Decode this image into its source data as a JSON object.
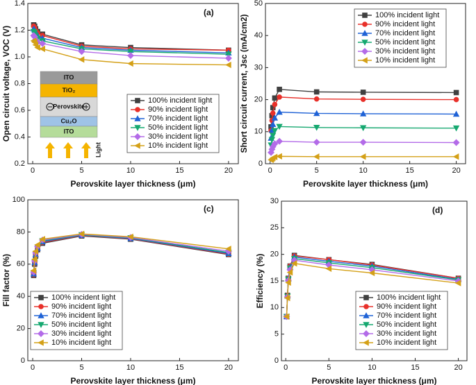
{
  "chart_data": [
    {
      "type": "line",
      "panel_label": "(a)",
      "x_label": "Perovskite layer thickness (μm)",
      "y_label": "Open circuit voltage, VOC (V)",
      "x": [
        0.1,
        0.2,
        0.3,
        0.5,
        1,
        5,
        10,
        20
      ],
      "xlim": [
        -0.5,
        21
      ],
      "xticks": [
        0,
        5,
        10,
        15,
        20
      ],
      "ylim": [
        0.2,
        1.4
      ],
      "yticks": [
        0.2,
        0.4,
        0.6,
        0.8,
        {
          "value": 1.0,
          "label": "1.0"
        },
        1.2,
        1.4
      ],
      "legend": "lower right",
      "inset_labels": [
        "ITO",
        "TiO₂",
        "Perovskite",
        "Cu₂O",
        "ITO",
        "Light"
      ],
      "series": [
        {
          "name": "100% incident light",
          "color": "#404040",
          "marker": "square",
          "values": [
            1.24,
            1.23,
            1.21,
            1.19,
            1.17,
            1.09,
            1.07,
            1.05
          ]
        },
        {
          "name": "90% incident light",
          "color": "#e8302a",
          "marker": "circle",
          "values": [
            1.23,
            1.22,
            1.2,
            1.18,
            1.16,
            1.08,
            1.06,
            1.05
          ]
        },
        {
          "name": "70% incident light",
          "color": "#1f62d6",
          "marker": "up",
          "values": [
            1.21,
            1.2,
            1.18,
            1.16,
            1.14,
            1.07,
            1.05,
            1.03
          ]
        },
        {
          "name": "50% incident light",
          "color": "#16a870",
          "marker": "down",
          "values": [
            1.19,
            1.18,
            1.16,
            1.14,
            1.12,
            1.06,
            1.04,
            1.02
          ]
        },
        {
          "name": "30% incident light",
          "color": "#b36be8",
          "marker": "diamond",
          "values": [
            1.16,
            1.15,
            1.13,
            1.11,
            1.1,
            1.04,
            1.01,
            0.99
          ]
        },
        {
          "name": "10% incident light",
          "color": "#d4a017",
          "marker": "left",
          "values": [
            1.12,
            1.11,
            1.09,
            1.07,
            1.06,
            0.98,
            0.95,
            0.94
          ]
        }
      ]
    },
    {
      "type": "line",
      "panel_label": "(b)",
      "x_label": "Perovskite layer thickness (μm)",
      "y_label": "Short circuit current, Jsc (mA/cm2)",
      "x": [
        0.1,
        0.2,
        0.3,
        0.5,
        1,
        5,
        10,
        20
      ],
      "xlim": [
        -0.5,
        21
      ],
      "xticks": [
        0,
        5,
        10,
        15,
        20
      ],
      "ylim": [
        0,
        50
      ],
      "yticks": [
        0,
        10,
        20,
        30,
        40,
        50
      ],
      "legend": "upper right",
      "series": [
        {
          "name": "100% incident light",
          "color": "#404040",
          "marker": "square",
          "values": [
            11.5,
            15,
            17.5,
            20.5,
            23.2,
            22.4,
            22.3,
            22.2
          ]
        },
        {
          "name": "90% incident light",
          "color": "#e8302a",
          "marker": "circle",
          "values": [
            10.3,
            13.5,
            15.8,
            18.5,
            20.8,
            20.2,
            20.1,
            20
          ]
        },
        {
          "name": "70% incident light",
          "color": "#1f62d6",
          "marker": "up",
          "values": [
            8,
            10.5,
            12.3,
            14.3,
            16.1,
            15.7,
            15.6,
            15.5
          ]
        },
        {
          "name": "50% incident light",
          "color": "#16a870",
          "marker": "down",
          "values": [
            5.8,
            7.5,
            8.8,
            10.3,
            11.6,
            11.3,
            11.2,
            11.1
          ]
        },
        {
          "name": "30% incident light",
          "color": "#b36be8",
          "marker": "diamond",
          "values": [
            3.5,
            4.5,
            5.3,
            6.2,
            7,
            6.7,
            6.7,
            6.6
          ]
        },
        {
          "name": "10% incident light",
          "color": "#d4a017",
          "marker": "left",
          "values": [
            1.2,
            1.5,
            1.8,
            2.1,
            2.3,
            2.2,
            2.2,
            2.2
          ]
        }
      ]
    },
    {
      "type": "line",
      "panel_label": "(c)",
      "x_label": "Perovskite layer thickness (μm)",
      "y_label": "Fill factor (%)",
      "x": [
        0.1,
        0.2,
        0.3,
        0.5,
        1,
        5,
        10,
        20
      ],
      "xlim": [
        -0.5,
        21
      ],
      "xticks": [
        0,
        5,
        10,
        15,
        20
      ],
      "ylim": [
        0,
        100
      ],
      "yticks": [
        0,
        20,
        40,
        60,
        80,
        100
      ],
      "legend": "lower left",
      "series": [
        {
          "name": "100% incident light",
          "color": "#404040",
          "marker": "square",
          "values": [
            53,
            60,
            65,
            69,
            73,
            77.5,
            75.5,
            66
          ]
        },
        {
          "name": "90% incident light",
          "color": "#e8302a",
          "marker": "circle",
          "values": [
            53.5,
            60.5,
            65.5,
            69.5,
            73.5,
            77.8,
            75.8,
            66.3
          ]
        },
        {
          "name": "70% incident light",
          "color": "#1f62d6",
          "marker": "up",
          "values": [
            54,
            61,
            66,
            70,
            74,
            78,
            76,
            66.7
          ]
        },
        {
          "name": "50% incident light",
          "color": "#16a870",
          "marker": "down",
          "values": [
            54.5,
            61.5,
            66.5,
            70.5,
            74.5,
            78.2,
            76.3,
            67.2
          ]
        },
        {
          "name": "30% incident light",
          "color": "#b36be8",
          "marker": "diamond",
          "values": [
            55,
            62,
            67,
            71,
            75,
            78.5,
            76.6,
            68
          ]
        },
        {
          "name": "10% incident light",
          "color": "#d4a017",
          "marker": "left",
          "values": [
            56,
            63,
            68,
            72,
            75.5,
            78.8,
            77,
            69.5
          ]
        }
      ]
    },
    {
      "type": "line",
      "panel_label": "(d)",
      "x_label": "Perovskite layer thickness (μm)",
      "y_label": "Efficiency (%)",
      "x": [
        0.1,
        0.2,
        0.3,
        0.5,
        1,
        5,
        10,
        20
      ],
      "xlim": [
        -0.5,
        21
      ],
      "xticks": [
        0,
        5,
        10,
        15,
        20
      ],
      "ylim": [
        0,
        30
      ],
      "yticks": [
        0,
        5,
        10,
        15,
        20,
        25,
        30
      ],
      "legend": "lower right",
      "series": [
        {
          "name": "100% incident light",
          "color": "#404040",
          "marker": "square",
          "values": [
            8.3,
            12.3,
            15.5,
            17.8,
            19.8,
            19,
            18.1,
            15.5
          ]
        },
        {
          "name": "90% incident light",
          "color": "#e8302a",
          "marker": "circle",
          "values": [
            8.3,
            12.3,
            15.5,
            17.8,
            19.7,
            19,
            18,
            15.5
          ]
        },
        {
          "name": "70% incident light",
          "color": "#1f62d6",
          "marker": "up",
          "values": [
            8.3,
            12.2,
            15.4,
            17.6,
            19.5,
            18.7,
            17.8,
            15.3
          ]
        },
        {
          "name": "50% incident light",
          "color": "#16a870",
          "marker": "down",
          "values": [
            8.3,
            12.1,
            15.3,
            17.4,
            19.2,
            18.4,
            17.5,
            15.2
          ]
        },
        {
          "name": "30% incident light",
          "color": "#b36be8",
          "marker": "diamond",
          "values": [
            8.3,
            12,
            15.1,
            17.1,
            18.9,
            18,
            17.1,
            15
          ]
        },
        {
          "name": "10% incident light",
          "color": "#d4a017",
          "marker": "left",
          "values": [
            8.3,
            11.8,
            14.7,
            16.6,
            18.3,
            17.3,
            16.5,
            14.6
          ]
        }
      ]
    }
  ]
}
